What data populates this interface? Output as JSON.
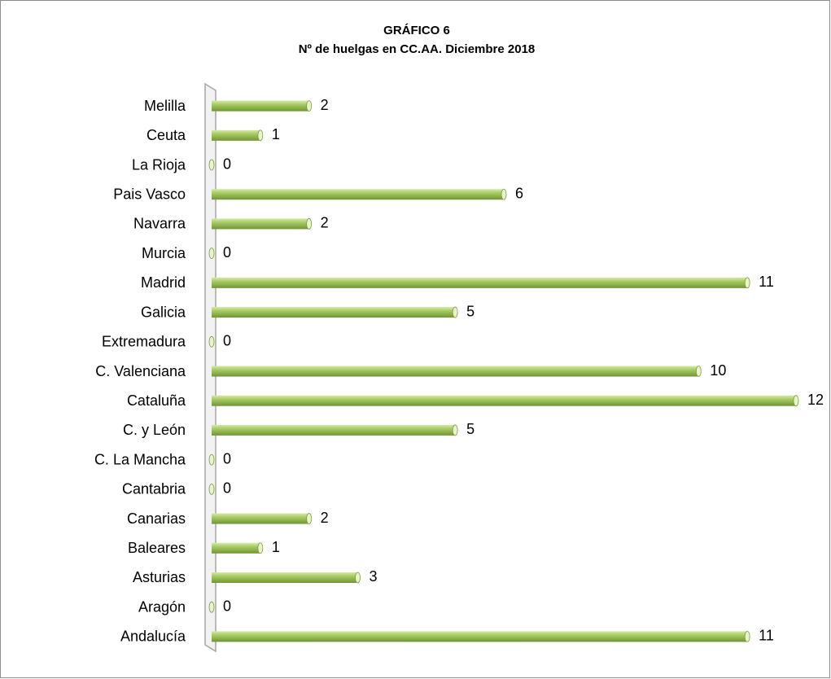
{
  "chart_data": {
    "type": "bar",
    "orientation": "horizontal",
    "title": "GRÁFICO 6",
    "subtitle": "Nº de huelgas en CC.AA. Diciembre 2018",
    "categories": [
      "Melilla",
      "Ceuta",
      "La Rioja",
      "Pais Vasco",
      "Navarra",
      "Murcia",
      "Madrid",
      "Galicia",
      "Extremadura",
      "C. Valenciana",
      "Cataluña",
      "C. y León",
      "C. La Mancha",
      "Cantabria",
      "Canarias",
      "Baleares",
      "Asturias",
      "Aragón",
      "Andalucía"
    ],
    "values": [
      2,
      1,
      0,
      6,
      2,
      0,
      11,
      5,
      0,
      10,
      12,
      5,
      0,
      0,
      2,
      1,
      3,
      0,
      11
    ],
    "color": "#9bc152",
    "xlim": [
      0,
      12
    ]
  }
}
